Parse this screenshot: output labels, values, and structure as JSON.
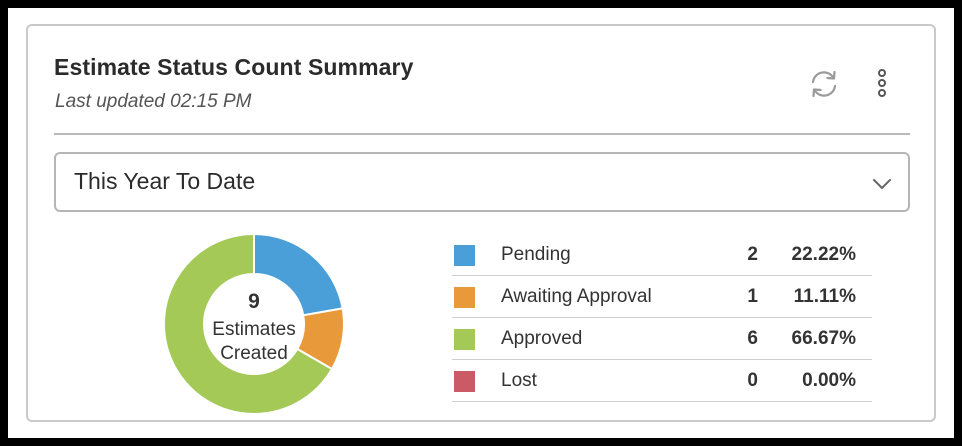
{
  "widget": {
    "title": "Estimate Status Count Summary",
    "last_updated": "Last updated 02:15 PM",
    "refresh_icon": "refresh-icon",
    "menu_icon": "more-vertical-icon"
  },
  "period_select": {
    "selected": "This Year To Date",
    "icon": "chevron-down-icon"
  },
  "summary": {
    "total": "9",
    "total_label_line1": "Estimates",
    "total_label_line2": "Created"
  },
  "legend": [
    {
      "label": "Pending",
      "count": "2",
      "percent": "22.22%",
      "color": "#4a9fd8"
    },
    {
      "label": "Awaiting Approval",
      "count": "1",
      "percent": "11.11%",
      "color": "#e89a3a"
    },
    {
      "label": "Approved",
      "count": "6",
      "percent": "66.67%",
      "color": "#a4c957"
    },
    {
      "label": "Lost",
      "count": "0",
      "percent": "0.00%",
      "color": "#cc5a66"
    }
  ],
  "chart_data": {
    "type": "pie",
    "categories": [
      "Pending",
      "Awaiting Approval",
      "Approved",
      "Lost"
    ],
    "values": [
      2,
      1,
      6,
      0
    ],
    "colors": [
      "#4a9fd8",
      "#e89a3a",
      "#a4c957",
      "#cc5a66"
    ]
  }
}
